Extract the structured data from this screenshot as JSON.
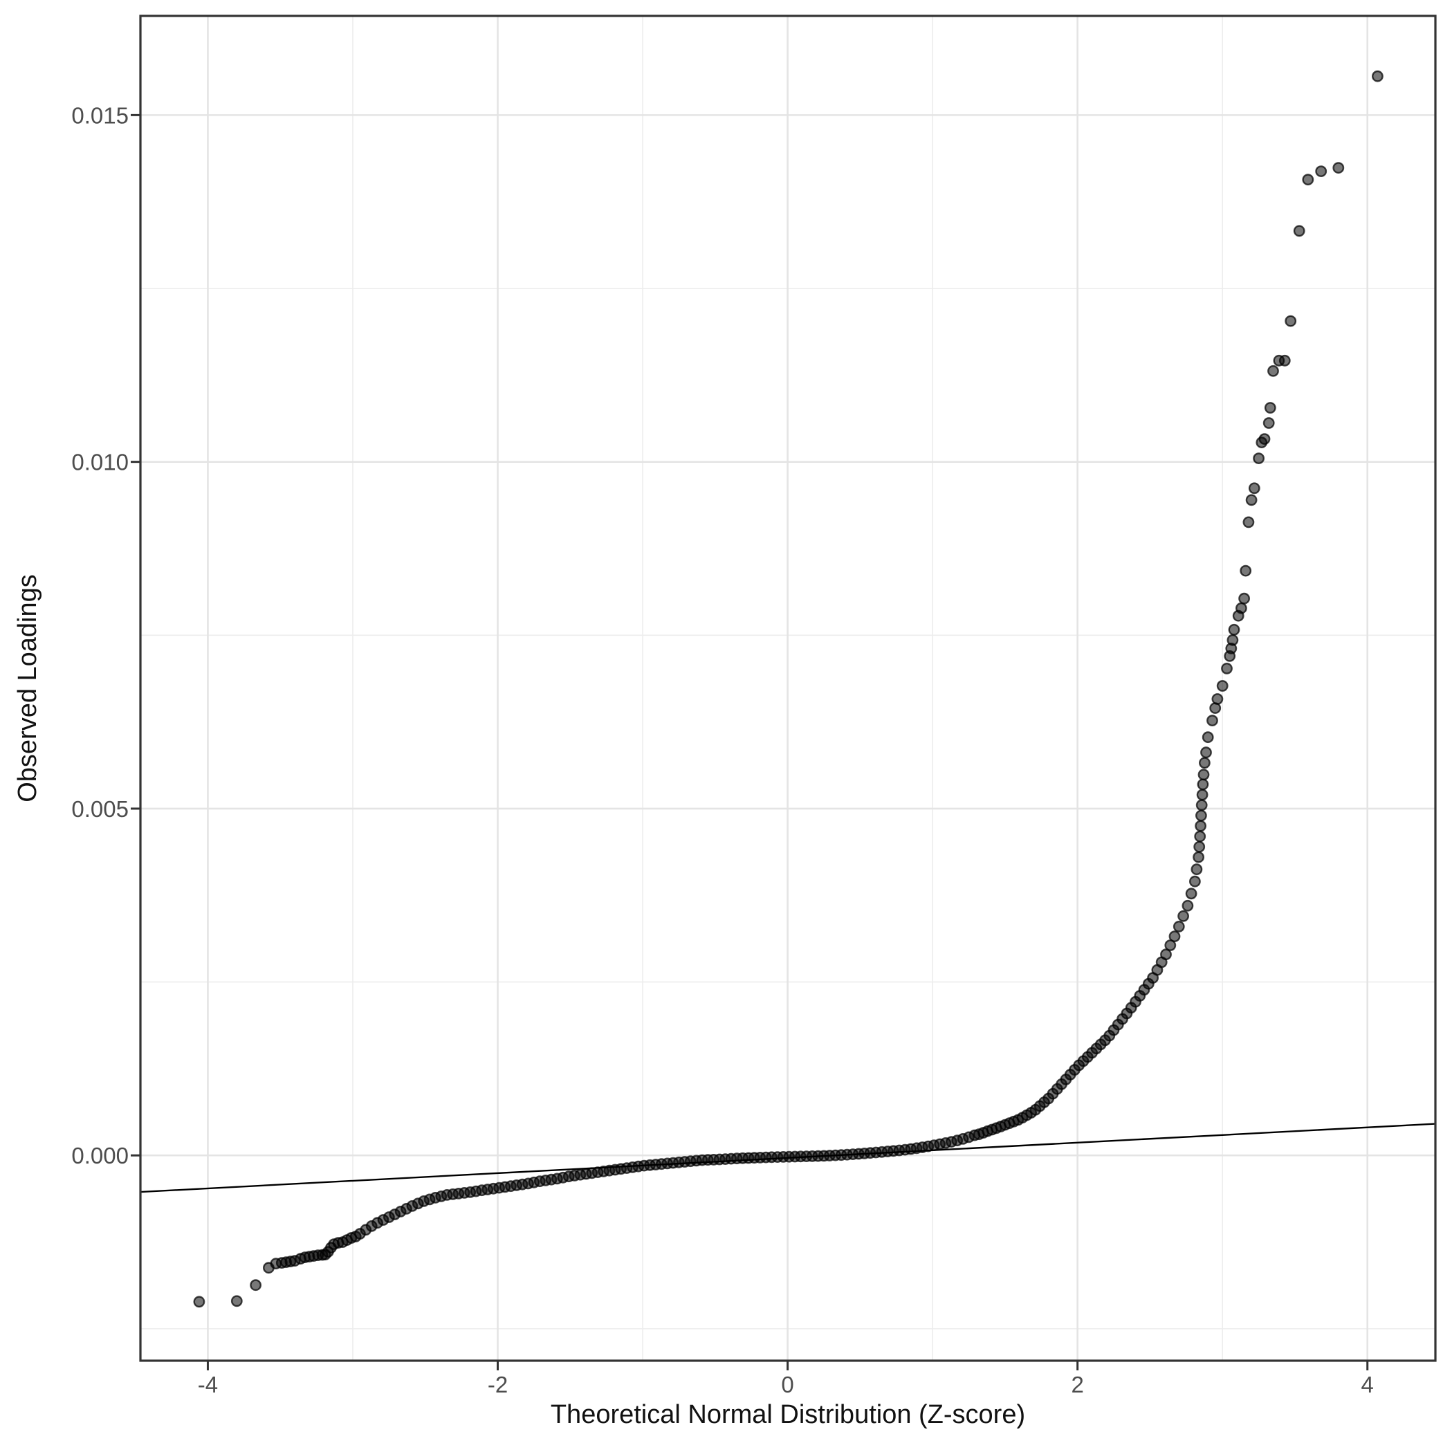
{
  "chart_data": {
    "type": "scatter",
    "subtype": "qq-plot",
    "title": "",
    "xlabel": "Theoretical Normal Distribution (Z-score)",
    "ylabel": "Observed Loadings",
    "xlim": [
      -4.465,
      4.469
    ],
    "ylim": [
      -0.00296,
      0.01643
    ],
    "grid": true,
    "legend": false,
    "x_ticks": {
      "values": [
        -4,
        -2,
        0,
        2,
        4
      ],
      "labels": [
        "-4",
        "-2",
        "0",
        "2",
        "4"
      ]
    },
    "y_ticks": {
      "values": [
        0,
        0.005,
        0.01,
        0.015
      ],
      "labels": [
        "0.000",
        "0.005",
        "0.010",
        "0.015"
      ]
    },
    "x_minor_ticks": [
      -3,
      -1,
      1,
      3
    ],
    "y_minor_ticks": [
      -0.0025,
      0.0025,
      0.0075,
      0.0125
    ],
    "reference_line": {
      "slope": 0.00011,
      "intercept": -3.6e-05
    },
    "style": {
      "background": "#ffffff",
      "grid_major_color": "#e4e4e4",
      "grid_minor_color": "#ededed",
      "panel_border_color": "#333333",
      "tick_color": "#333333",
      "tick_label_color": "#4d4d4d",
      "axis_title_color": "#111111",
      "point_color": "#000000",
      "point_fill_opacity": 0.53,
      "point_stroke_opacity": 0.72,
      "ref_line_color": "#000000"
    },
    "points": [
      [
        -4.06,
        -0.00211
      ],
      [
        -3.8,
        -0.0021
      ],
      [
        -3.67,
        -0.00187
      ],
      [
        -3.58,
        -0.00162
      ],
      [
        -3.53,
        -0.00156
      ],
      [
        -3.49,
        -0.00155
      ],
      [
        -3.46,
        -0.00154
      ],
      [
        -3.43,
        -0.00153
      ],
      [
        -3.4,
        -0.00152
      ],
      [
        -3.36,
        -0.00149
      ],
      [
        -3.33,
        -0.00147
      ],
      [
        -3.3,
        -0.00146
      ],
      [
        -3.27,
        -0.00145
      ],
      [
        -3.24,
        -0.00144
      ],
      [
        -3.21,
        -0.001435
      ],
      [
        -3.19,
        -0.00143
      ],
      [
        -3.17,
        -0.00139
      ],
      [
        -3.15,
        -0.00133
      ],
      [
        -3.13,
        -0.00128
      ],
      [
        -3.1,
        -0.00126
      ],
      [
        -3.07,
        -0.00125
      ],
      [
        -3.04,
        -0.00122
      ],
      [
        -3.01,
        -0.00119
      ],
      [
        -2.98,
        -0.00117
      ],
      [
        -2.95,
        -0.00113
      ],
      [
        -2.91,
        -0.001073
      ],
      [
        -2.87,
        -0.001019
      ],
      [
        -2.83,
        -0.000972
      ],
      [
        -2.79,
        -0.00093
      ],
      [
        -2.75,
        -0.00089
      ],
      [
        -2.71,
        -0.00085
      ],
      [
        -2.67,
        -0.00081
      ],
      [
        -2.63,
        -0.00077
      ],
      [
        -2.59,
        -0.00073
      ],
      [
        -2.55,
        -0.000694
      ],
      [
        -2.51,
        -0.00066
      ],
      [
        -2.47,
        -0.000635
      ],
      [
        -2.43,
        -0.00061
      ],
      [
        -2.39,
        -0.00059
      ],
      [
        -2.35,
        -0.00057
      ],
      [
        -2.31,
        -0.00056
      ],
      [
        -2.27,
        -0.00055
      ],
      [
        -2.23,
        -0.00054
      ],
      [
        -2.19,
        -0.00053
      ],
      [
        -2.15,
        -0.000517
      ],
      [
        -2.11,
        -0.000503
      ],
      [
        -2.07,
        -0.000491
      ],
      [
        -2.03,
        -0.000479
      ],
      [
        -1.99,
        -0.000467
      ],
      [
        -1.95,
        -0.000455
      ],
      [
        -1.91,
        -0.000443
      ],
      [
        -1.87,
        -0.000431
      ],
      [
        -1.83,
        -0.000419
      ],
      [
        -1.79,
        -0.000406
      ],
      [
        -1.75,
        -0.00039
      ],
      [
        -1.71,
        -0.000374
      ],
      [
        -1.67,
        -0.000361
      ],
      [
        -1.63,
        -0.000349
      ],
      [
        -1.59,
        -0.000336
      ],
      [
        -1.55,
        -0.00032
      ],
      [
        -1.51,
        -0.000304
      ],
      [
        -1.47,
        -0.000291
      ],
      [
        -1.43,
        -0.000279
      ],
      [
        -1.39,
        -0.000267
      ],
      [
        -1.35,
        -0.000255
      ],
      [
        -1.31,
        -0.000243
      ],
      [
        -1.27,
        -0.000231
      ],
      [
        -1.23,
        -0.000219
      ],
      [
        -1.19,
        -0.000207
      ],
      [
        -1.15,
        -0.000195
      ],
      [
        -1.11,
        -0.000183
      ],
      [
        -1.07,
        -0.000171
      ],
      [
        -1.03,
        -0.000159
      ],
      [
        -0.99,
        -0.000148
      ],
      [
        -0.95,
        -0.00014
      ],
      [
        -0.91,
        -0.000132
      ],
      [
        -0.87,
        -0.000124
      ],
      [
        -0.83,
        -0.000116
      ],
      [
        -0.79,
        -0.000108
      ],
      [
        -0.75,
        -0.0001
      ],
      [
        -0.71,
        -9.2e-05
      ],
      [
        -0.67,
        -8.4e-05
      ],
      [
        -0.63,
        -7.6e-05
      ],
      [
        -0.59,
        -6.8e-05
      ],
      [
        -0.55,
        -6.4e-05
      ],
      [
        -0.51,
        -6.1e-05
      ],
      [
        -0.47,
        -5.7e-05
      ],
      [
        -0.43,
        -5.3e-05
      ],
      [
        -0.39,
        -4.9e-05
      ],
      [
        -0.35,
        -4.5e-05
      ],
      [
        -0.31,
        -4.1e-05
      ],
      [
        -0.27,
        -3.8e-05
      ],
      [
        -0.23,
        -3.5e-05
      ],
      [
        -0.19,
        -3.2e-05
      ],
      [
        -0.15,
        -2.9e-05
      ],
      [
        -0.11,
        -2.6e-05
      ],
      [
        -0.07,
        -2.4e-05
      ],
      [
        -0.03,
        -2.2e-05
      ],
      [
        0.01,
        -2e-05
      ],
      [
        0.05,
        -1.8e-05
      ],
      [
        0.09,
        -1.6e-05
      ],
      [
        0.13,
        -1.4e-05
      ],
      [
        0.17,
        -1.2e-05
      ],
      [
        0.21,
        -1e-05
      ],
      [
        0.25,
        -7e-06
      ],
      [
        0.29,
        -3e-06
      ],
      [
        0.33,
        1e-06
      ],
      [
        0.37,
        5e-06
      ],
      [
        0.41,
        1e-05
      ],
      [
        0.45,
        1.6e-05
      ],
      [
        0.49,
        2.2e-05
      ],
      [
        0.53,
        2.8e-05
      ],
      [
        0.57,
        3.5e-05
      ],
      [
        0.61,
        4.2e-05
      ],
      [
        0.65,
        4.9e-05
      ],
      [
        0.69,
        5.7e-05
      ],
      [
        0.73,
        6.4e-05
      ],
      [
        0.77,
        7.2e-05
      ],
      [
        0.81,
        8.1e-05
      ],
      [
        0.85,
        9.2e-05
      ],
      [
        0.89,
        0.000104
      ],
      [
        0.93,
        0.000117
      ],
      [
        0.97,
        0.000131
      ],
      [
        1.01,
        0.000146
      ],
      [
        1.05,
        0.000162
      ],
      [
        1.09,
        0.000178
      ],
      [
        1.13,
        0.000196
      ],
      [
        1.17,
        0.000215
      ],
      [
        1.21,
        0.000238
      ],
      [
        1.25,
        0.000263
      ],
      [
        1.29,
        0.000291
      ],
      [
        1.32,
        0.000305
      ],
      [
        1.35,
        0.000327
      ],
      [
        1.38,
        0.000349
      ],
      [
        1.41,
        0.000371
      ],
      [
        1.44,
        0.000393
      ],
      [
        1.47,
        0.000416
      ],
      [
        1.5,
        0.00044
      ],
      [
        1.53,
        0.000464
      ],
      [
        1.56,
        0.000488
      ],
      [
        1.59,
        0.000512
      ],
      [
        1.62,
        0.000544
      ],
      [
        1.65,
        0.00058
      ],
      [
        1.68,
        0.000616
      ],
      [
        1.71,
        0.000658
      ],
      [
        1.74,
        0.000712
      ],
      [
        1.77,
        0.000766
      ],
      [
        1.8,
        0.00082
      ],
      [
        1.83,
        0.000889
      ],
      [
        1.86,
        0.000958
      ],
      [
        1.89,
        0.001027
      ],
      [
        1.92,
        0.001096
      ],
      [
        1.95,
        0.001165
      ],
      [
        1.98,
        0.001234
      ],
      [
        2.01,
        0.0013
      ],
      [
        2.04,
        0.00136
      ],
      [
        2.07,
        0.00142
      ],
      [
        2.1,
        0.00148
      ],
      [
        2.13,
        0.00154
      ],
      [
        2.16,
        0.0016
      ],
      [
        2.19,
        0.00166
      ],
      [
        2.22,
        0.001727
      ],
      [
        2.25,
        0.001807
      ],
      [
        2.28,
        0.001887
      ],
      [
        2.31,
        0.001967
      ],
      [
        2.34,
        0.002047
      ],
      [
        2.37,
        0.002129
      ],
      [
        2.4,
        0.002215
      ],
      [
        2.43,
        0.002301
      ],
      [
        2.46,
        0.002388
      ],
      [
        2.49,
        0.002474
      ],
      [
        2.52,
        0.00256
      ],
      [
        2.55,
        0.002673
      ],
      [
        2.58,
        0.002785
      ],
      [
        2.61,
        0.002898
      ],
      [
        2.64,
        0.00303
      ],
      [
        2.67,
        0.003158
      ],
      [
        2.7,
        0.0033
      ],
      [
        2.73,
        0.00345
      ],
      [
        2.76,
        0.0036
      ],
      [
        2.785,
        0.003775
      ],
      [
        2.81,
        0.00395
      ],
      [
        2.822,
        0.004125
      ],
      [
        2.835,
        0.0043
      ],
      [
        2.84,
        0.00445
      ],
      [
        2.845,
        0.0046
      ],
      [
        2.849,
        0.00475
      ],
      [
        2.853,
        0.0049
      ],
      [
        2.857,
        0.00505
      ],
      [
        2.861,
        0.0052
      ],
      [
        2.865,
        0.00535
      ],
      [
        2.87,
        0.00549
      ],
      [
        2.877,
        0.00566
      ],
      [
        2.887,
        0.00581
      ],
      [
        2.9,
        0.00603
      ],
      [
        2.93,
        0.00627
      ],
      [
        2.95,
        0.00645
      ],
      [
        2.965,
        0.00658
      ],
      [
        3.0,
        0.00677
      ],
      [
        3.03,
        0.00702
      ],
      [
        3.05,
        0.0072
      ],
      [
        3.06,
        0.00731
      ],
      [
        3.07,
        0.00743
      ],
      [
        3.08,
        0.00758
      ],
      [
        3.11,
        0.00778
      ],
      [
        3.13,
        0.00789
      ],
      [
        3.15,
        0.00803
      ],
      [
        3.16,
        0.00843
      ],
      [
        3.18,
        0.00913
      ],
      [
        3.2,
        0.00945
      ],
      [
        3.22,
        0.00962
      ],
      [
        3.25,
        0.01005
      ],
      [
        3.27,
        0.01028
      ],
      [
        3.29,
        0.01033
      ],
      [
        3.32,
        0.01056
      ],
      [
        3.33,
        0.01078
      ],
      [
        3.35,
        0.01131
      ],
      [
        3.39,
        0.01146
      ],
      [
        3.43,
        0.01146
      ],
      [
        3.47,
        0.01203
      ],
      [
        3.53,
        0.01333
      ],
      [
        3.59,
        0.01407
      ],
      [
        3.68,
        0.01419
      ],
      [
        3.8,
        0.01424
      ],
      [
        4.07,
        0.01556
      ]
    ]
  }
}
